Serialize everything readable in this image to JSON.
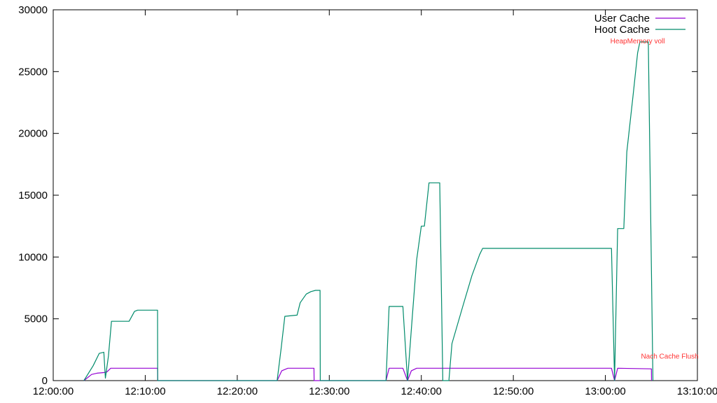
{
  "chart_data": {
    "type": "line",
    "title": "",
    "xlabel": "",
    "ylabel": "",
    "x_ticks": [
      "12:00:00",
      "12:10:00",
      "12:20:00",
      "12:30:00",
      "12:40:00",
      "12:50:00",
      "13:00:00",
      "13:10:00"
    ],
    "x_range": [
      "12:00:00",
      "13:10:00"
    ],
    "y_ticks": [
      "0",
      "5000",
      "10000",
      "15000",
      "20000",
      "25000",
      "30000"
    ],
    "ylim": [
      0,
      30000
    ],
    "grid": false,
    "legend_position": "top-right",
    "series": [
      {
        "name": "User Cache",
        "color": "#9400d3",
        "points": [
          [
            "12:03:20",
            0
          ],
          [
            "12:03:40",
            200
          ],
          [
            "12:04:10",
            500
          ],
          [
            "12:04:45",
            600
          ],
          [
            "12:05:30",
            650
          ],
          [
            "12:05:50",
            700
          ],
          [
            "12:06:15",
            1000
          ],
          [
            "12:08:00",
            1000
          ],
          [
            "12:11:20",
            1000
          ],
          [
            "12:11:21",
            0
          ],
          [
            "12:24:20",
            0
          ],
          [
            "12:24:50",
            800
          ],
          [
            "12:25:30",
            1000
          ],
          [
            "12:28:20",
            1000
          ],
          [
            "12:28:21",
            0
          ],
          [
            "12:36:10",
            0
          ],
          [
            "12:36:30",
            1000
          ],
          [
            "12:38:00",
            1000
          ],
          [
            "12:38:30",
            0
          ],
          [
            "12:38:55",
            800
          ],
          [
            "12:39:30",
            1000
          ],
          [
            "12:42:20",
            1000
          ],
          [
            "12:45:00",
            1000
          ],
          [
            "12:55:00",
            1000
          ],
          [
            "13:00:40",
            1000
          ],
          [
            "13:01:00",
            0
          ],
          [
            "13:01:20",
            1000
          ],
          [
            "13:05:00",
            950
          ],
          [
            "13:05:01",
            0
          ]
        ]
      },
      {
        "name": "Hoot Cache",
        "color": "#008b6b",
        "points": [
          [
            "12:03:20",
            0
          ],
          [
            "12:03:40",
            400
          ],
          [
            "12:04:20",
            1200
          ],
          [
            "12:05:00",
            2200
          ],
          [
            "12:05:30",
            2300
          ],
          [
            "12:05:40",
            200
          ],
          [
            "12:06:00",
            2000
          ],
          [
            "12:06:20",
            4800
          ],
          [
            "12:08:15",
            4800
          ],
          [
            "12:08:50",
            5600
          ],
          [
            "12:09:10",
            5700
          ],
          [
            "12:11:20",
            5700
          ],
          [
            "12:11:21",
            0
          ],
          [
            "12:16:20",
            0
          ],
          [
            "12:16:21",
            0
          ],
          [
            "12:24:20",
            0
          ],
          [
            "12:24:45",
            2500
          ],
          [
            "12:25:10",
            5200
          ],
          [
            "12:26:30",
            5300
          ],
          [
            "12:26:50",
            6300
          ],
          [
            "12:27:30",
            7000
          ],
          [
            "12:28:00",
            7200
          ],
          [
            "12:28:30",
            7300
          ],
          [
            "12:29:00",
            7300
          ],
          [
            "12:29:01",
            0
          ],
          [
            "12:36:10",
            0
          ],
          [
            "12:36:30",
            6000
          ],
          [
            "12:38:00",
            6000
          ],
          [
            "12:38:30",
            0
          ],
          [
            "12:39:00",
            5000
          ],
          [
            "12:39:30",
            9800
          ],
          [
            "12:40:00",
            12500
          ],
          [
            "12:40:20",
            12500
          ],
          [
            "12:40:50",
            16000
          ],
          [
            "12:42:00",
            16000
          ],
          [
            "12:42:20",
            0
          ],
          [
            "12:43:00",
            0
          ],
          [
            "12:43:20",
            3000
          ],
          [
            "12:44:30",
            6000
          ],
          [
            "12:45:30",
            8500
          ],
          [
            "12:46:20",
            10200
          ],
          [
            "12:46:40",
            10700
          ],
          [
            "12:51:00",
            10700
          ],
          [
            "13:00:40",
            10700
          ],
          [
            "13:01:00",
            0
          ],
          [
            "13:01:20",
            12300
          ],
          [
            "13:02:00",
            12300
          ],
          [
            "13:02:20",
            18500
          ],
          [
            "13:03:00",
            23000
          ],
          [
            "13:03:30",
            26500
          ],
          [
            "13:03:45",
            27400
          ],
          [
            "13:04:20",
            27400
          ],
          [
            "13:04:40",
            27400
          ],
          [
            "13:05:10",
            0
          ]
        ]
      }
    ],
    "annotations": [
      {
        "text": "HeapMemory voll",
        "x": "13:03:30",
        "y": 27500,
        "color": "#ff3333"
      },
      {
        "text": "Nach Cache Flush",
        "x": "13:07:00",
        "y": 2000,
        "color": "#ff3333"
      }
    ]
  }
}
